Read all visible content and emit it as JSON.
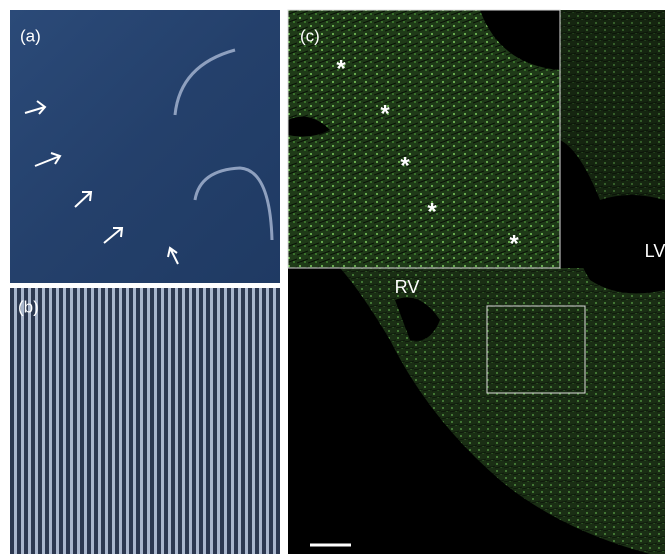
{
  "panels": [
    {
      "label": "(a)"
    },
    {
      "label": "(b)"
    },
    {
      "label": "(c)",
      "annotations": [
        "*",
        "*",
        "*",
        "*",
        "*"
      ],
      "regions": [
        "RV",
        "LV"
      ]
    }
  ]
}
